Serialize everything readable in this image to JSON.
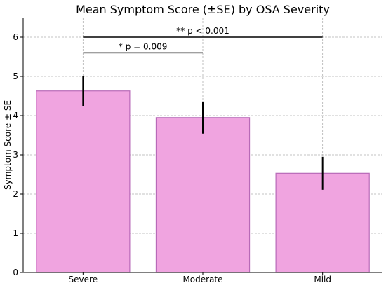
{
  "chart_data": {
    "type": "bar",
    "title": "Mean Symptom Score (±SE) by OSA Severity",
    "xlabel": "",
    "ylabel": "Symptom Score ± SE",
    "categories": [
      "Severe",
      "Moderate",
      "Mild"
    ],
    "values": [
      4.63,
      3.95,
      2.53
    ],
    "errors": [
      0.38,
      0.41,
      0.42
    ],
    "ylim": [
      0,
      6.5
    ],
    "yticks": [
      0,
      1,
      2,
      3,
      4,
      5,
      6
    ],
    "grid": true,
    "colors": {
      "bar_fill": "#f0a4e0",
      "bar_edge": "#b86ab8",
      "error": "#000000"
    },
    "annotations": [
      {
        "from": "Severe",
        "to": "Moderate",
        "y": 5.6,
        "label": "* p = 0.009"
      },
      {
        "from": "Severe",
        "to": "Mild",
        "y": 6.0,
        "label": "** p < 0.001"
      }
    ]
  }
}
